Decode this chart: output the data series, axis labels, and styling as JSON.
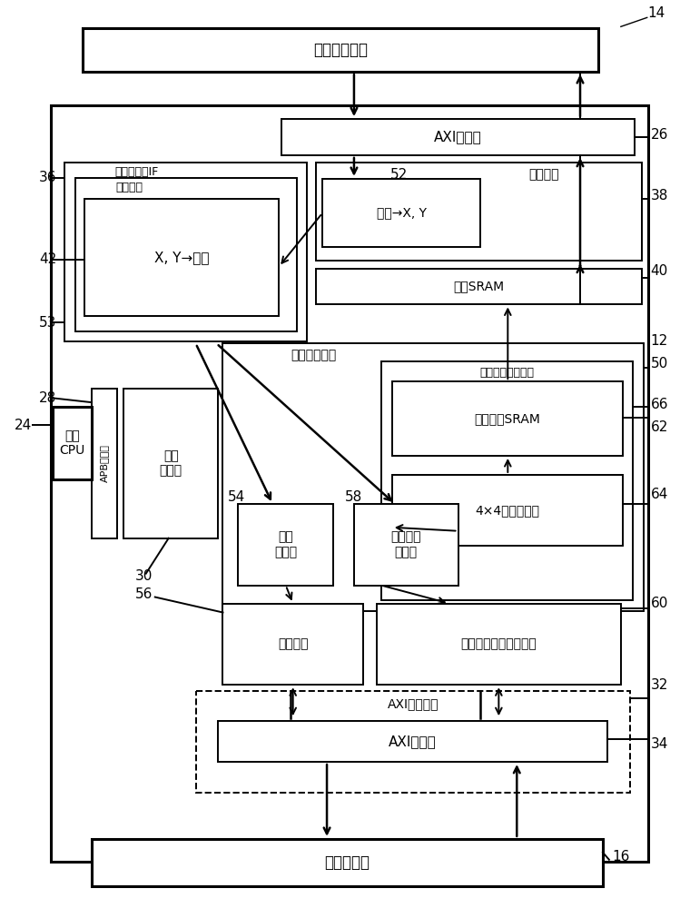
{
  "bg_color": "#ffffff",
  "lw_thick": 2.2,
  "lw_thin": 1.4,
  "lw_med": 1.8,
  "labels": {
    "display_controller": "显示器控制器",
    "axi_slave": "AXI从接口",
    "mem_mapped_if": "存储器映射IF",
    "prefetch_circuit": "预取电路",
    "xy_header": "X, Y→标头",
    "addr_xy": "地址→X, Y",
    "detile_ctrl": "去瓦控制",
    "detile_sram": "去瓦SRAM",
    "superblock_decoder": "超级块解码器",
    "sb_decoder_core": "超级块解码器核心",
    "reorder_sram": "重新排序SRAM",
    "4x4_decoder": "4×4解码器核心",
    "surface_cfg": "表面\n配置表",
    "header_fetcher": "标头\n获取器",
    "payload_fetcher": "有效载荷\n获取器",
    "header_buffer": "标头缓存",
    "payload_buffer": "有效载荷缓存及缓冲区",
    "axi_read_module": "AXI读取模块",
    "axi_master": "AXI主接口",
    "external_mem": "外部存储器",
    "host_cpu": "主机\nCPU",
    "apb_slave": "APB从接口"
  }
}
